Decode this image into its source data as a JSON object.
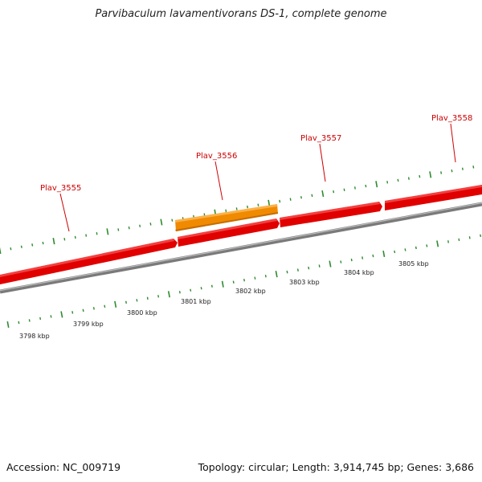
{
  "title": "Parvibaculum lavamentivorans DS-1, complete genome",
  "footer": {
    "accession": "Accession: NC_009719",
    "summary": "Topology: circular; Length: 3,914,745 bp; Genes: 3,686"
  },
  "colors": {
    "gene_forward": "#e10000",
    "gene_highlight": "#f08a00",
    "backbone": "#888888",
    "tick": "#2e8b2e",
    "gene_label": "#cc0000"
  },
  "genes": [
    {
      "label": "Plav_3555"
    },
    {
      "label": "Plav_3556"
    },
    {
      "label": "Plav_3557"
    },
    {
      "label": "Plav_3558"
    }
  ],
  "scale_labels": [
    "3798 kbp",
    "3799 kbp",
    "3800 kbp",
    "3801 kbp",
    "3802 kbp",
    "3803 kbp",
    "3804 kbp",
    "3805 kbp"
  ]
}
